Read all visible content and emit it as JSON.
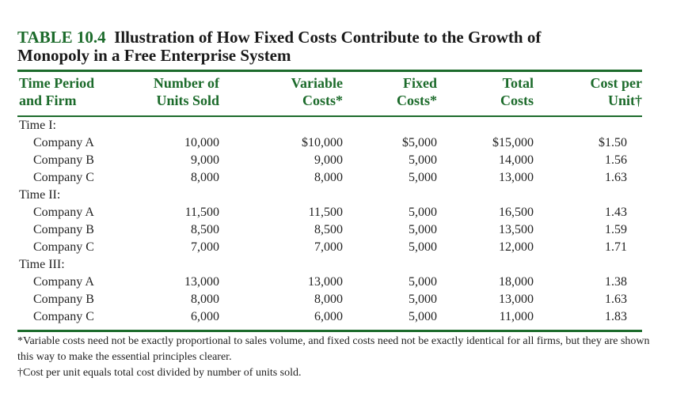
{
  "title": {
    "number": "TABLE 10.4",
    "text": "Illustration of How Fixed Costs Contribute to the Growth of",
    "line2": "Monopoly in a Free Enterprise System"
  },
  "headers": [
    [
      "Time Period",
      "and Firm"
    ],
    [
      "Number of",
      "Units Sold"
    ],
    [
      "Variable",
      "Costs*"
    ],
    [
      "Fixed",
      "Costs*"
    ],
    [
      "Total",
      "Costs"
    ],
    [
      "Cost per",
      "Unit†"
    ]
  ],
  "groups": [
    {
      "label": "Time I:",
      "rows": [
        [
          "Company A",
          "10,000",
          "$10,000",
          "$5,000",
          "$15,000",
          "$1.50"
        ],
        [
          "Company B",
          "9,000",
          "9,000",
          "5,000",
          "14,000",
          "1.56"
        ],
        [
          "Company C",
          "8,000",
          "8,000",
          "5,000",
          "13,000",
          "1.63"
        ]
      ]
    },
    {
      "label": "Time II:",
      "rows": [
        [
          "Company A",
          "11,500",
          "11,500",
          "5,000",
          "16,500",
          "1.43"
        ],
        [
          "Company B",
          "8,500",
          "8,500",
          "5,000",
          "13,500",
          "1.59"
        ],
        [
          "Company C",
          "7,000",
          "7,000",
          "5,000",
          "12,000",
          "1.71"
        ]
      ]
    },
    {
      "label": "Time III:",
      "rows": [
        [
          "Company A",
          "13,000",
          "13,000",
          "5,000",
          "18,000",
          "1.38"
        ],
        [
          "Company B",
          "8,000",
          "8,000",
          "5,000",
          "13,000",
          "1.63"
        ],
        [
          "Company C",
          "6,000",
          "6,000",
          "5,000",
          "11,000",
          "1.83"
        ]
      ]
    }
  ],
  "footnotes": [
    "*Variable costs need not be exactly proportional to sales volume, and fixed costs need not be exactly identical for all firms, but they are shown this way to make the essential principles clearer.",
    "†Cost per unit equals total cost divided by number of units sold."
  ]
}
